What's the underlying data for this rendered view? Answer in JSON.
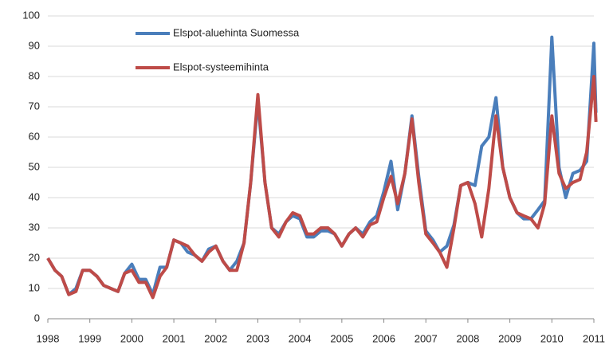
{
  "chart_data": {
    "type": "line",
    "x": [
      1998,
      1998.17,
      1998.33,
      1998.5,
      1998.67,
      1998.83,
      1999,
      1999.17,
      1999.33,
      1999.5,
      1999.67,
      1999.83,
      2000,
      2000.17,
      2000.33,
      2000.5,
      2000.67,
      2000.83,
      2001,
      2001.17,
      2001.33,
      2001.5,
      2001.67,
      2001.83,
      2002,
      2002.17,
      2002.33,
      2002.5,
      2002.67,
      2002.83,
      2003,
      2003.17,
      2003.33,
      2003.5,
      2003.67,
      2003.83,
      2004,
      2004.17,
      2004.33,
      2004.5,
      2004.67,
      2004.83,
      2005,
      2005.17,
      2005.33,
      2005.5,
      2005.67,
      2005.83,
      2006,
      2006.17,
      2006.33,
      2006.5,
      2006.67,
      2006.83,
      2007,
      2007.17,
      2007.33,
      2007.5,
      2007.67,
      2007.83,
      2008,
      2008.17,
      2008.33,
      2008.5,
      2008.67,
      2008.83,
      2009,
      2009.17,
      2009.33,
      2009.5,
      2009.67,
      2009.83,
      2010,
      2010.17,
      2010.33,
      2010.5,
      2010.67,
      2010.83,
      2011,
      2011.05
    ],
    "series": [
      {
        "name": "Elspot-aluehinta Suomessa",
        "color": "#4a7ebb",
        "values": [
          20,
          16,
          14,
          8,
          10,
          16,
          16,
          14,
          11,
          10,
          9,
          15,
          18,
          13,
          13,
          8,
          17,
          17,
          26,
          25,
          22,
          21,
          19,
          23,
          24,
          19,
          16,
          19,
          25,
          45,
          72,
          45,
          30,
          28,
          32,
          34,
          33,
          27,
          27,
          29,
          29,
          28,
          24,
          28,
          30,
          28,
          32,
          34,
          42,
          52,
          36,
          48,
          67,
          47,
          29,
          26,
          22,
          24,
          31,
          44,
          45,
          44,
          57,
          60,
          73,
          50,
          40,
          35,
          33,
          33,
          36,
          39,
          93,
          50,
          40,
          48,
          49,
          52,
          91,
          68
        ]
      },
      {
        "name": "Elspot-systeemihinta",
        "color": "#be4b48",
        "values": [
          20,
          16,
          14,
          8,
          9,
          16,
          16,
          14,
          11,
          10,
          9,
          15,
          16,
          12,
          12,
          7,
          14,
          17,
          26,
          25,
          24,
          21,
          19,
          22,
          24,
          19,
          16,
          16,
          25,
          45,
          74,
          45,
          30,
          27,
          32,
          35,
          34,
          28,
          28,
          30,
          30,
          28,
          24,
          28,
          30,
          27,
          31,
          32,
          40,
          47,
          38,
          48,
          66,
          45,
          28,
          25,
          22,
          17,
          30,
          44,
          45,
          38,
          27,
          43,
          67,
          50,
          40,
          35,
          34,
          33,
          30,
          38,
          67,
          48,
          43,
          45,
          46,
          55,
          80,
          65
        ]
      }
    ],
    "xlim": [
      1998,
      2011
    ],
    "xticks": [
      1998,
      1999,
      2000,
      2001,
      2002,
      2003,
      2004,
      2005,
      2006,
      2007,
      2008,
      2009,
      2010,
      2011
    ],
    "ylim": [
      0,
      100
    ],
    "yticks": [
      0,
      10,
      20,
      30,
      40,
      50,
      60,
      70,
      80,
      90,
      100
    ],
    "grid": true,
    "legend": "top"
  }
}
